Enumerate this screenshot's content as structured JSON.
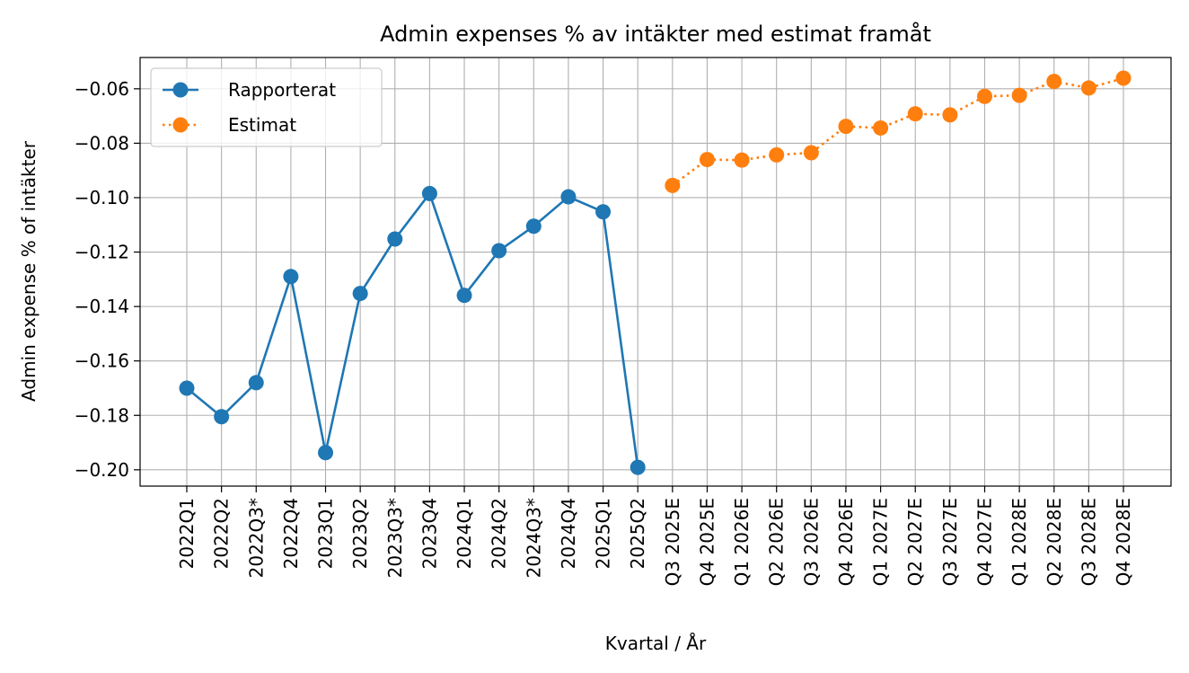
{
  "chart_data": {
    "type": "line",
    "title": "Admin expenses % av intäkter med estimat framåt",
    "xlabel": "Kvartal / År",
    "ylabel": "Admin expense % of intäkter",
    "categories": [
      "2022Q1",
      "2022Q2",
      "2022Q3*",
      "2022Q4",
      "2023Q1",
      "2023Q2",
      "2023Q3*",
      "2023Q4",
      "2024Q1",
      "2024Q2",
      "2024Q3*",
      "2024Q4",
      "2025Q1",
      "2025Q2",
      "Q3 2025E",
      "Q4 2025E",
      "Q1 2026E",
      "Q2 2026E",
      "Q3 2026E",
      "Q4 2026E",
      "Q1 2027E",
      "Q2 2027E",
      "Q3 2027E",
      "Q4 2027E",
      "Q1 2028E",
      "Q2 2028E",
      "Q3 2028E",
      "Q4 2028E"
    ],
    "series": [
      {
        "name": "Rapporterat",
        "color": "#1f77b4",
        "line_style": "solid",
        "marker": "circle",
        "x": [
          "2022Q1",
          "2022Q2",
          "2022Q3*",
          "2022Q4",
          "2023Q1",
          "2023Q2",
          "2023Q3*",
          "2023Q4",
          "2024Q1",
          "2024Q2",
          "2024Q3*",
          "2024Q4",
          "2025Q1",
          "2025Q2"
        ],
        "values": [
          -0.17,
          -0.1805,
          -0.168,
          -0.129,
          -0.1937,
          -0.1352,
          -0.1152,
          -0.0985,
          -0.1359,
          -0.1195,
          -0.1105,
          -0.0997,
          -0.1052,
          -0.1991
        ]
      },
      {
        "name": "Estimat",
        "color": "#ff7f0e",
        "line_style": "dotted",
        "marker": "circle",
        "x": [
          "Q3 2025E",
          "Q4 2025E",
          "Q1 2026E",
          "Q2 2026E",
          "Q3 2026E",
          "Q4 2026E",
          "Q1 2027E",
          "Q2 2027E",
          "Q3 2027E",
          "Q4 2027E",
          "Q1 2028E",
          "Q2 2028E",
          "Q3 2028E",
          "Q4 2028E"
        ],
        "values": [
          -0.0955,
          -0.086,
          -0.0862,
          -0.0843,
          -0.0835,
          -0.0738,
          -0.0744,
          -0.0692,
          -0.0696,
          -0.0628,
          -0.0624,
          -0.0573,
          -0.0597,
          -0.0561
        ]
      }
    ],
    "ylim": [
      -0.206,
      -0.0485
    ],
    "yticks": [
      -0.2,
      -0.18,
      -0.16,
      -0.14,
      -0.12,
      -0.1,
      -0.08,
      -0.06
    ],
    "ytick_labels": [
      "−0.20",
      "−0.18",
      "−0.16",
      "−0.14",
      "−0.12",
      "−0.10",
      "−0.08",
      "−0.06"
    ],
    "grid": true,
    "legend_position": "top-left"
  }
}
